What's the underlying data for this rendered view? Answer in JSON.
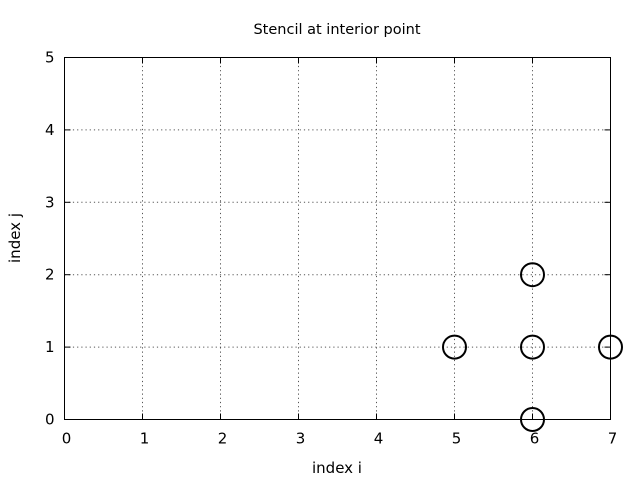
{
  "chart_data": {
    "type": "scatter",
    "title": "Stencil at interior point",
    "xlabel": "index i",
    "ylabel": "index j",
    "xlim": [
      0,
      7
    ],
    "ylim": [
      0,
      5
    ],
    "xticks": [
      "0",
      "1",
      "2",
      "3",
      "4",
      "5",
      "6",
      "7"
    ],
    "yticks": [
      "0",
      "1",
      "2",
      "3",
      "4",
      "5"
    ],
    "grid": true,
    "marker": "open-circle",
    "points": [
      {
        "x": 6,
        "y": 2
      },
      {
        "x": 5,
        "y": 1
      },
      {
        "x": 6,
        "y": 1
      },
      {
        "x": 7,
        "y": 1
      },
      {
        "x": 6,
        "y": 0
      }
    ]
  }
}
